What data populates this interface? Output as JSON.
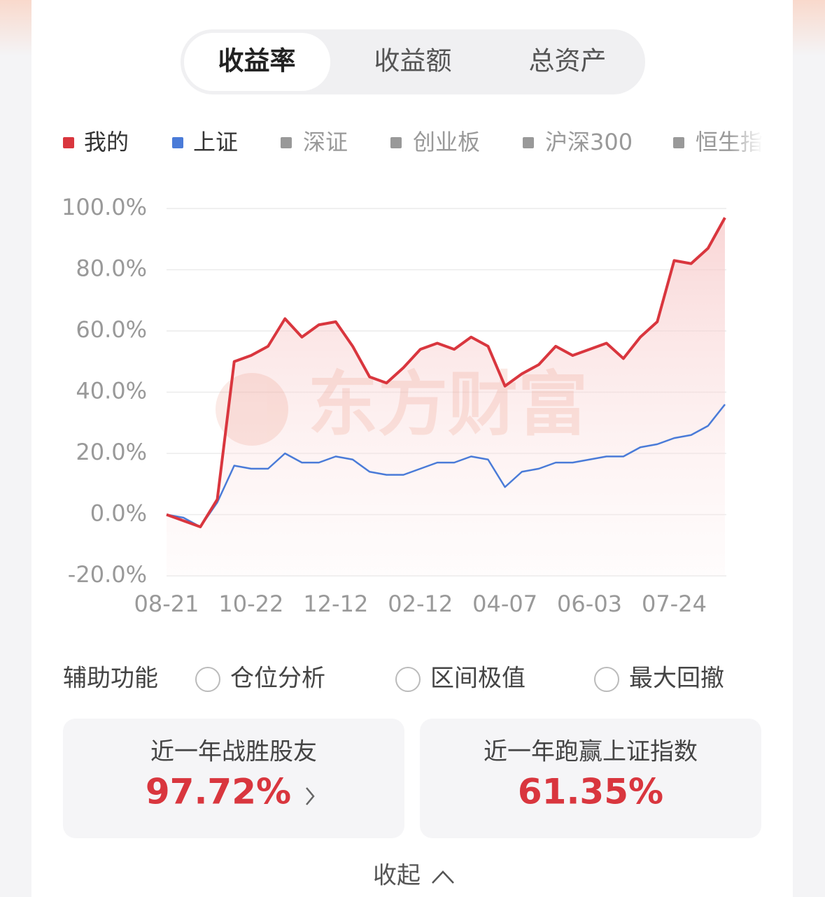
{
  "tabs": [
    "收益率",
    "收益额",
    "总资产"
  ],
  "inactive_legend": [
    "深证",
    "创业板",
    "沪深300",
    "恒生指"
  ],
  "chart_data": {
    "type": "line",
    "watermark": "东方财富",
    "categories": [
      "08-21",
      null,
      null,
      null,
      null,
      "10-22",
      null,
      null,
      null,
      null,
      "12-12",
      null,
      null,
      null,
      null,
      "02-12",
      null,
      null,
      null,
      null,
      "04-07",
      null,
      null,
      null,
      null,
      "06-03",
      null,
      null,
      null,
      null,
      "07-24",
      null,
      null,
      null
    ],
    "series": [
      {
        "name": "我的",
        "color": "#d9363e",
        "values": [
          0,
          -2,
          -4,
          5,
          50,
          52,
          55,
          64,
          58,
          62,
          63,
          55,
          45,
          43,
          48,
          54,
          56,
          54,
          58,
          55,
          42,
          46,
          49,
          55,
          52,
          54,
          56,
          51,
          58,
          63,
          83,
          82,
          87,
          97
        ]
      },
      {
        "name": "上证",
        "color": "#4a7bd8",
        "values": [
          0,
          -1,
          -4,
          4,
          16,
          15,
          15,
          20,
          17,
          17,
          19,
          18,
          14,
          13,
          13,
          15,
          17,
          17,
          19,
          18,
          9,
          14,
          15,
          17,
          17,
          18,
          19,
          19,
          22,
          23,
          25,
          26,
          29,
          36
        ]
      }
    ],
    "ylim": [
      -20,
      100
    ],
    "yticks": [
      {
        "value": -20,
        "label": "-20.0%"
      },
      {
        "value": 0,
        "label": "0.0%"
      },
      {
        "value": 20,
        "label": "20.0%"
      },
      {
        "value": 40,
        "label": "40.0%"
      },
      {
        "value": 60,
        "label": "60.0%"
      },
      {
        "value": 80,
        "label": "80.0%"
      },
      {
        "value": 100,
        "label": "100.0%"
      }
    ],
    "grid": true
  },
  "aux": {
    "label": "辅助功能",
    "options": [
      "仓位分析",
      "区间极值",
      "最大回撤"
    ]
  },
  "cards": [
    {
      "title": "近一年战胜股友",
      "value": "97.72%"
    },
    {
      "title": "近一年跑赢上证指数",
      "value": "61.35%"
    }
  ],
  "collapse": "收起"
}
